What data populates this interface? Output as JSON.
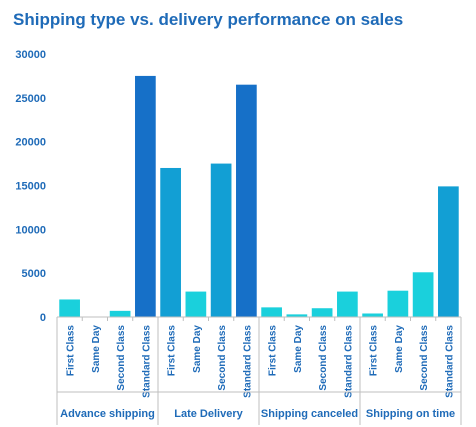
{
  "chart_data": {
    "type": "bar",
    "title": "Shipping type vs. delivery performance on sales",
    "groups": [
      "Advance shipping",
      "Late Delivery",
      "Shipping canceled",
      "Shipping on time"
    ],
    "categories": [
      "First Class",
      "Same Day",
      "Second Class",
      "Standard Class"
    ],
    "series": [
      {
        "values": [
          2000,
          0,
          700,
          27500
        ]
      },
      {
        "values": [
          17000,
          2900,
          17500,
          26500
        ]
      },
      {
        "values": [
          1100,
          300,
          1000,
          2900
        ]
      },
      {
        "values": [
          400,
          3000,
          5100,
          14900
        ]
      }
    ],
    "ylim": [
      0,
      30000
    ],
    "yticks": [
      0,
      5000,
      10000,
      15000,
      20000,
      25000,
      30000
    ],
    "xlabel": "",
    "ylabel": "",
    "grid": false,
    "legend": "none",
    "colors": {
      "light": "#1ad0dc",
      "mid": "#129fd4",
      "dark": "#1670c8",
      "text": "#1f6bb8",
      "axis": "#bfbfbf"
    }
  }
}
